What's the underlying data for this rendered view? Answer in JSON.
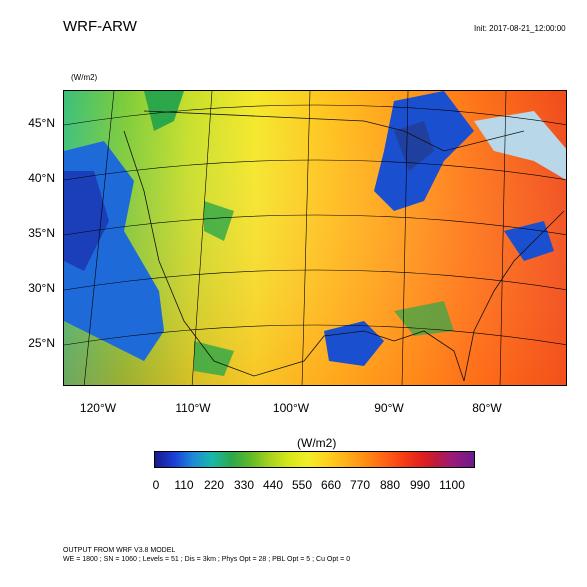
{
  "header": {
    "title": "WRF-ARW",
    "init": "Init: 2017-08-21_12:00:00",
    "units_small": "(W/m2)"
  },
  "map": {
    "lat_labels": [
      "45°N",
      "40°N",
      "35°N",
      "30°N",
      "25°N"
    ],
    "lon_labels": [
      "120°W",
      "110°W",
      "100°W",
      "90°W",
      "80°W"
    ]
  },
  "colorbar": {
    "units": "(W/m2)",
    "ticks": [
      "0",
      "110",
      "220",
      "330",
      "440",
      "550",
      "660",
      "770",
      "880",
      "990",
      "1100"
    ]
  },
  "footer": {
    "line1": "OUTPUT FROM WRF V3.8 MODEL",
    "line2": "WE = 1800 ; SN = 1060 ; Levels = 51 ; Dis = 3km ; Phys Opt = 28 ; PBL Opt = 5 ; Cu Opt = 0"
  }
}
